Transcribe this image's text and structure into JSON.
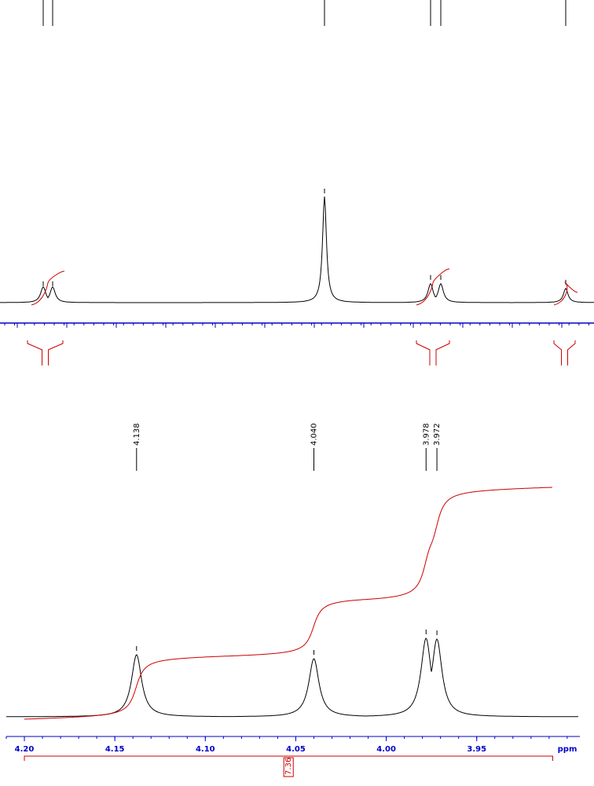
{
  "chart_data": {
    "type": "nmr",
    "x": [
      4.138,
      4.04,
      3.978,
      3.972
    ],
    "peak_labels": [
      "4.138",
      "4.040",
      "3.978",
      "3.972"
    ],
    "values": [
      79,
      74,
      100,
      99
    ],
    "ylim": [
      0,
      100
    ],
    "xlim": [
      4.21,
      3.893
    ],
    "xticks": [
      {
        "value": 4.2,
        "label": "4.20"
      },
      {
        "value": 4.15,
        "label": "4.15"
      },
      {
        "value": 4.1,
        "label": "4.10"
      },
      {
        "value": 4.05,
        "label": "4.05"
      },
      {
        "value": 4.0,
        "label": "4.00"
      },
      {
        "value": 3.95,
        "label": "3.95"
      }
    ],
    "xlabel": "ppm",
    "integral": {
      "value": 7.36,
      "range": [
        4.2,
        3.908
      ]
    },
    "color": "#000000",
    "integral_color": "#cc0000",
    "axis_color": "#0000cc"
  }
}
